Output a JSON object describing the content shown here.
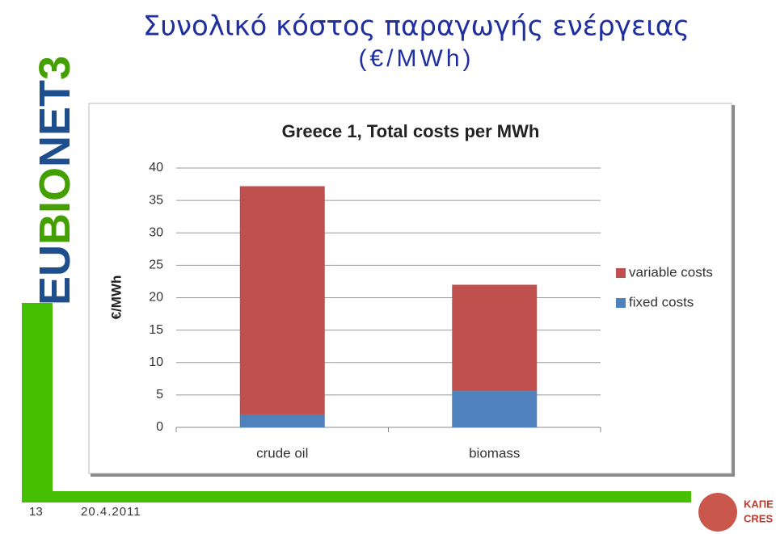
{
  "slide": {
    "title": "Συνολικό κόστος παραγωγής ενέργειας",
    "subtitle": "(€/MWh)",
    "page_number": "13",
    "date": "20.4.2011",
    "logo": [
      "EU",
      "BIO",
      "NET",
      "3"
    ],
    "partner_logo": [
      "ΚΑΠΕ",
      "CRES"
    ]
  },
  "chart_data": {
    "type": "stacked_bar",
    "title": "Greece 1, Total costs per MWh",
    "y_label": "€/MWh",
    "categories": [
      "crude oil",
      "biomass"
    ],
    "series": [
      {
        "name": "fixed costs",
        "color": "#4f81bd",
        "values": [
          2,
          5.6
        ]
      },
      {
        "name": "variable costs",
        "color": "#c0504d",
        "values": [
          35.2,
          16.4
        ]
      }
    ],
    "ylim": [
      0,
      40
    ],
    "yticks": [
      0,
      5,
      10,
      15,
      20,
      25,
      30,
      35,
      40
    ],
    "grid": true,
    "legend": "right"
  }
}
